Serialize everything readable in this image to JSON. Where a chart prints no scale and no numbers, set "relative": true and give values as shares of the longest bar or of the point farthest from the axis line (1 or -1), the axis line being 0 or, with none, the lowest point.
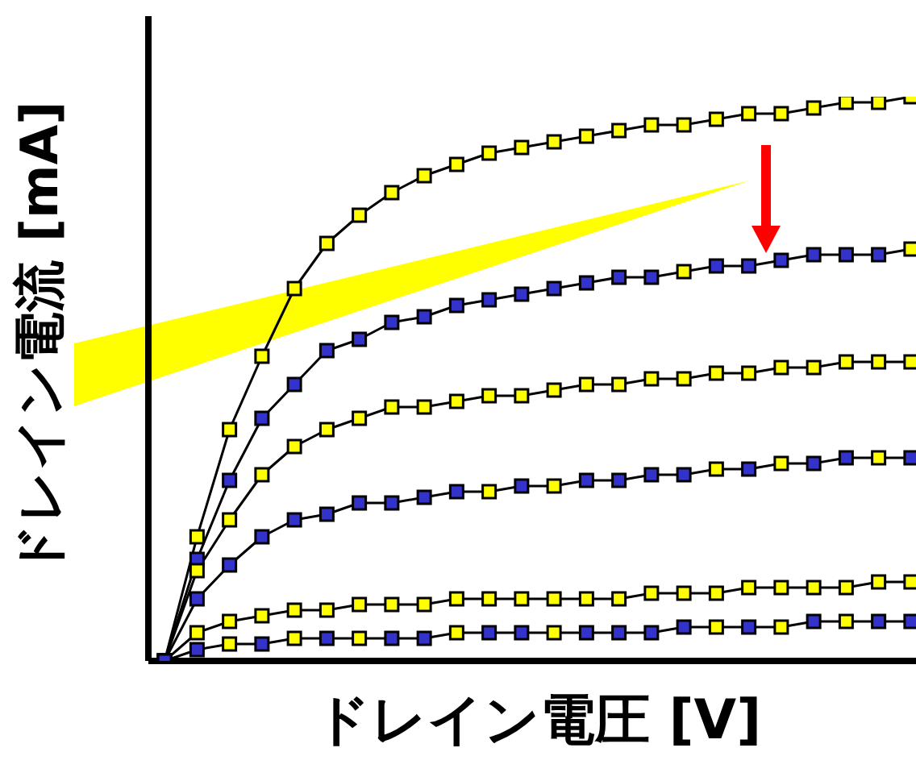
{
  "chart_data": {
    "type": "line",
    "relative": true,
    "xlabel": "ドレイン電圧 [V]",
    "ylabel": "ドレイン電流 [mA]",
    "marker": "square",
    "categories": [
      null,
      null,
      null,
      null,
      null,
      null,
      null,
      null,
      null,
      null,
      null,
      null,
      null,
      null,
      null,
      null,
      null,
      null,
      null,
      null,
      null,
      null,
      null,
      null
    ],
    "series": [
      {
        "color": "#000000",
        "colors": [
          "#ffff00",
          "#ffff00",
          "#ffff00",
          "#ffff00",
          "#ffff00",
          "#ffff00",
          "#ffff00",
          "#ffff00",
          "#ffff00",
          "#ffff00",
          "#ffff00",
          "#ffff00",
          "#ffff00",
          "#ffff00",
          "#ffff00",
          "#ffff00",
          "#ffff00",
          "#ffff00",
          "#ffff00",
          "#ffff00",
          "#ffff00",
          "#ffff00",
          "#ffff00",
          "#ffff00"
        ],
        "values": [
          0,
          0.22,
          0.41,
          0.54,
          0.66,
          0.74,
          0.79,
          0.83,
          0.86,
          0.88,
          0.9,
          0.91,
          0.92,
          0.93,
          0.94,
          0.95,
          0.95,
          0.96,
          0.97,
          0.97,
          0.98,
          0.99,
          0.99,
          1
        ]
      },
      {
        "color": "#000000",
        "colors": [
          "#3333cc",
          "#3333cc",
          "#3333cc",
          "#3333cc",
          "#3333cc",
          "#3333cc",
          "#3333cc",
          "#3333cc",
          "#3333cc",
          "#3333cc",
          "#3333cc",
          "#3333cc",
          "#3333cc",
          "#3333cc",
          "#3333cc",
          "#3333cc",
          "#ffff00",
          "#3333cc",
          "#3333cc",
          "#3333cc",
          "#3333cc",
          "#3333cc",
          "#3333cc",
          "#ffff00"
        ],
        "values": [
          0,
          0.18,
          0.32,
          0.43,
          0.49,
          0.55,
          0.57,
          0.6,
          0.61,
          0.63,
          0.64,
          0.65,
          0.66,
          0.67,
          0.68,
          0.68,
          0.69,
          0.7,
          0.7,
          0.71,
          0.72,
          0.72,
          0.72,
          0.73
        ]
      },
      {
        "color": "#000000",
        "colors": [
          "#ffff00",
          "#ffff00",
          "#ffff00",
          "#ffff00",
          "#ffff00",
          "#ffff00",
          "#ffff00",
          "#ffff00",
          "#ffff00",
          "#ffff00",
          "#ffff00",
          "#ffff00",
          "#ffff00",
          "#ffff00",
          "#ffff00",
          "#ffff00",
          "#ffff00",
          "#ffff00",
          "#ffff00",
          "#ffff00",
          "#ffff00",
          "#ffff00",
          "#ffff00",
          "#ffff00"
        ],
        "values": [
          0,
          0.16,
          0.25,
          0.33,
          0.38,
          0.41,
          0.43,
          0.45,
          0.45,
          0.46,
          0.47,
          0.47,
          0.48,
          0.49,
          0.49,
          0.5,
          0.5,
          0.51,
          0.51,
          0.52,
          0.52,
          0.53,
          0.53,
          0.53
        ]
      },
      {
        "color": "#000000",
        "colors": [
          "#3333cc",
          "#3333cc",
          "#3333cc",
          "#3333cc",
          "#3333cc",
          "#3333cc",
          "#3333cc",
          "#3333cc",
          "#3333cc",
          "#3333cc",
          "#ffff00",
          "#3333cc",
          "#ffff00",
          "#3333cc",
          "#3333cc",
          "#3333cc",
          "#3333cc",
          "#ffff00",
          "#3333cc",
          "#ffff00",
          "#3333cc",
          "#3333cc",
          "#ffff00",
          "#3333cc"
        ],
        "values": [
          0,
          0.11,
          0.17,
          0.22,
          0.25,
          0.26,
          0.28,
          0.28,
          0.29,
          0.3,
          0.3,
          0.31,
          0.31,
          0.32,
          0.32,
          0.33,
          0.33,
          0.34,
          0.34,
          0.35,
          0.35,
          0.36,
          0.36,
          0.36
        ]
      },
      {
        "color": "#000000",
        "colors": [
          "#ffff00",
          "#ffff00",
          "#ffff00",
          "#ffff00",
          "#ffff00",
          "#ffff00",
          "#ffff00",
          "#ffff00",
          "#ffff00",
          "#ffff00",
          "#ffff00",
          "#ffff00",
          "#ffff00",
          "#ffff00",
          "#ffff00",
          "#ffff00",
          "#ffff00",
          "#ffff00",
          "#ffff00",
          "#ffff00",
          "#ffff00",
          "#ffff00",
          "#ffff00",
          "#ffff00"
        ],
        "values": [
          0,
          0.05,
          0.07,
          0.08,
          0.09,
          0.09,
          0.1,
          0.1,
          0.1,
          0.11,
          0.11,
          0.11,
          0.11,
          0.11,
          0.11,
          0.12,
          0.12,
          0.12,
          0.13,
          0.13,
          0.13,
          0.13,
          0.14,
          0.14
        ]
      },
      {
        "color": "#000000",
        "colors": [
          "#3333cc",
          "#3333cc",
          "#ffff00",
          "#3333cc",
          "#ffff00",
          "#3333cc",
          "#ffff00",
          "#3333cc",
          "#3333cc",
          "#ffff00",
          "#3333cc",
          "#3333cc",
          "#ffff00",
          "#3333cc",
          "#3333cc",
          "#3333cc",
          "#3333cc",
          "#ffff00",
          "#3333cc",
          "#ffff00",
          "#3333cc",
          "#ffff00",
          "#3333cc",
          "#3333cc"
        ],
        "values": [
          0,
          0.02,
          0.03,
          0.03,
          0.04,
          0.04,
          0.04,
          0.04,
          0.04,
          0.05,
          0.05,
          0.05,
          0.05,
          0.05,
          0.05,
          0.05,
          0.06,
          0.06,
          0.06,
          0.06,
          0.07,
          0.07,
          0.07,
          0.07
        ]
      }
    ]
  }
}
